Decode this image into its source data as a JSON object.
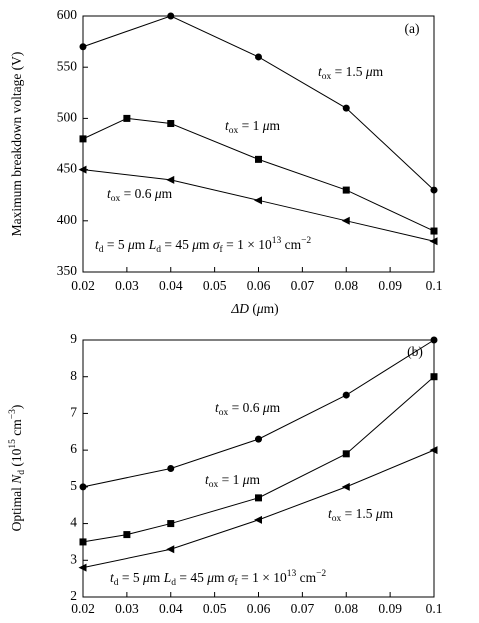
{
  "chart_data": [
    {
      "type": "line",
      "panel_label": "(a)",
      "xlabel": [
        {
          "text": "ΔD",
          "style": "italic"
        },
        {
          "text": " ("
        },
        {
          "text": "μ",
          "style": "italic"
        },
        {
          "text": "m)"
        }
      ],
      "ylabel": [
        {
          "text": "Maximum breakdown voltage (V)"
        }
      ],
      "xlim": [
        0.02,
        0.1
      ],
      "xticks": [
        0.02,
        0.03,
        0.04,
        0.05,
        0.06,
        0.07,
        0.08,
        0.09,
        0.1
      ],
      "ylim": [
        350,
        600
      ],
      "yticks": [
        350,
        400,
        450,
        500,
        550,
        600
      ],
      "color": "#000000",
      "series": [
        {
          "label": [
            {
              "text": "t",
              "style": "italic"
            },
            {
              "text": "ox",
              "style": "sub"
            },
            {
              "text": " = 1.5 "
            },
            {
              "text": "μ",
              "style": "italic"
            },
            {
              "text": "m"
            }
          ],
          "marker": "circle",
          "x": [
            0.02,
            0.04,
            0.06,
            0.08,
            0.1
          ],
          "values": [
            570,
            600,
            560,
            510,
            430
          ]
        },
        {
          "label": [
            {
              "text": "t",
              "style": "italic"
            },
            {
              "text": "ox",
              "style": "sub"
            },
            {
              "text": " = 1 "
            },
            {
              "text": "μ",
              "style": "italic"
            },
            {
              "text": "m"
            }
          ],
          "marker": "square",
          "x": [
            0.02,
            0.03,
            0.04,
            0.06,
            0.08,
            0.1
          ],
          "values": [
            480,
            500,
            495,
            460,
            430,
            390
          ]
        },
        {
          "label": [
            {
              "text": "t",
              "style": "italic"
            },
            {
              "text": "ox",
              "style": "sub"
            },
            {
              "text": " = 0.6 "
            },
            {
              "text": "μ",
              "style": "italic"
            },
            {
              "text": "m"
            }
          ],
          "marker": "triangle-left",
          "x": [
            0.02,
            0.04,
            0.06,
            0.08,
            0.1
          ],
          "values": [
            450,
            440,
            420,
            400,
            380
          ]
        }
      ],
      "annotation": [
        {
          "text": "t",
          "style": "italic"
        },
        {
          "text": "d",
          "style": "sub"
        },
        {
          "text": " = 5 "
        },
        {
          "text": "μ",
          "style": "italic"
        },
        {
          "text": "m  "
        },
        {
          "text": "L",
          "style": "italic"
        },
        {
          "text": "d",
          "style": "sub"
        },
        {
          "text": " = 45 "
        },
        {
          "text": "μ",
          "style": "italic"
        },
        {
          "text": "m  "
        },
        {
          "text": "σ",
          "style": "italic"
        },
        {
          "text": "f",
          "style": "sub"
        },
        {
          "text": " = 1 × 10"
        },
        {
          "text": "13",
          "style": "sup"
        },
        {
          "text": " cm"
        },
        {
          "text": "−2",
          "style": "sup"
        }
      ]
    },
    {
      "type": "line",
      "panel_label": "(b)",
      "ylabel": [
        {
          "text": "Optimal "
        },
        {
          "text": "N",
          "style": "italic"
        },
        {
          "text": "d",
          "style": "sub"
        },
        {
          "text": " (10"
        },
        {
          "text": "15",
          "style": "sup"
        },
        {
          "text": " cm"
        },
        {
          "text": "−3",
          "style": "sup"
        },
        {
          "text": ")"
        }
      ],
      "xlim": [
        0.02,
        0.1
      ],
      "xticks": [
        0.02,
        0.03,
        0.04,
        0.05,
        0.06,
        0.07,
        0.08,
        0.09,
        0.1
      ],
      "ylim": [
        2,
        9
      ],
      "yticks": [
        2,
        3,
        4,
        5,
        6,
        7,
        8,
        9
      ],
      "color": "#000000",
      "series": [
        {
          "label": [
            {
              "text": "t",
              "style": "italic"
            },
            {
              "text": "ox",
              "style": "sub"
            },
            {
              "text": " = 0.6 "
            },
            {
              "text": "μ",
              "style": "italic"
            },
            {
              "text": "m"
            }
          ],
          "marker": "circle",
          "x": [
            0.02,
            0.04,
            0.06,
            0.08,
            0.1
          ],
          "values": [
            5,
            5.5,
            6.3,
            7.5,
            9
          ]
        },
        {
          "label": [
            {
              "text": "t",
              "style": "italic"
            },
            {
              "text": "ox",
              "style": "sub"
            },
            {
              "text": " = 1 "
            },
            {
              "text": "μ",
              "style": "italic"
            },
            {
              "text": "m"
            }
          ],
          "marker": "square",
          "x": [
            0.02,
            0.03,
            0.04,
            0.06,
            0.08,
            0.1
          ],
          "values": [
            3.5,
            3.7,
            4,
            4.7,
            5.9,
            8
          ]
        },
        {
          "label": [
            {
              "text": "t",
              "style": "italic"
            },
            {
              "text": "ox",
              "style": "sub"
            },
            {
              "text": " = 1.5 "
            },
            {
              "text": "μ",
              "style": "italic"
            },
            {
              "text": "m"
            }
          ],
          "marker": "triangle-left",
          "x": [
            0.02,
            0.04,
            0.06,
            0.08,
            0.1
          ],
          "values": [
            2.8,
            3.3,
            4.1,
            5,
            6
          ]
        }
      ],
      "annotation": [
        {
          "text": "t",
          "style": "italic"
        },
        {
          "text": "d",
          "style": "sub"
        },
        {
          "text": " = 5 "
        },
        {
          "text": "μ",
          "style": "italic"
        },
        {
          "text": "m  "
        },
        {
          "text": "L",
          "style": "italic"
        },
        {
          "text": "d",
          "style": "sub"
        },
        {
          "text": " = 45 "
        },
        {
          "text": "μ",
          "style": "italic"
        },
        {
          "text": "m  "
        },
        {
          "text": "σ",
          "style": "italic"
        },
        {
          "text": "f",
          "style": "sub"
        },
        {
          "text": " = 1 × 10"
        },
        {
          "text": "13",
          "style": "sup"
        },
        {
          "text": " cm"
        },
        {
          "text": "−2",
          "style": "sup"
        }
      ]
    }
  ]
}
